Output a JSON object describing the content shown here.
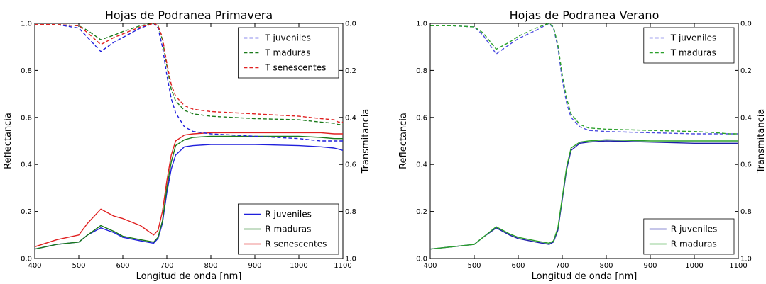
{
  "chart_data": [
    {
      "type": "line",
      "title": "Hojas de Podranea Primavera",
      "xlabel": "Longitud de onda [nm]",
      "ylabel": "Reflectancia",
      "y2label": "Transmitancia",
      "xlim": [
        400,
        1100
      ],
      "ylim": [
        0,
        1
      ],
      "y2lim": [
        1,
        0
      ],
      "y2_inverted": true,
      "grid": false,
      "xticks": [
        "400",
        "500",
        "600",
        "700",
        "800",
        "900",
        "1000",
        "1100"
      ],
      "yticks": [
        "0.0",
        "0.2",
        "0.4",
        "0.6",
        "0.8",
        "1.0"
      ],
      "y2ticks": [
        "0.0",
        "0.2",
        "0.4",
        "0.6",
        "0.8",
        "1.0"
      ],
      "legend_top": {
        "placement": "top-right",
        "entries": [
          "T juveniles",
          "T maduras",
          "T senescentes"
        ]
      },
      "legend_bottom": {
        "placement": "bottom-right",
        "entries": [
          "R juveniles",
          "R maduras",
          "R senescentes"
        ]
      },
      "x": [
        400,
        450,
        500,
        520,
        550,
        580,
        600,
        640,
        670,
        680,
        690,
        700,
        710,
        720,
        740,
        760,
        800,
        900,
        1000,
        1050,
        1080,
        1090,
        1100
      ],
      "series": [
        {
          "name": "R juveniles",
          "axis": "left",
          "style": "solid",
          "color": "#1f1fdc",
          "values": [
            0.04,
            0.06,
            0.07,
            0.1,
            0.13,
            0.11,
            0.09,
            0.075,
            0.065,
            0.085,
            0.15,
            0.28,
            0.38,
            0.44,
            0.475,
            0.48,
            0.485,
            0.485,
            0.48,
            0.475,
            0.47,
            0.465,
            0.46
          ]
        },
        {
          "name": "R maduras",
          "axis": "left",
          "style": "solid",
          "color": "#1a7a1a",
          "values": [
            0.04,
            0.06,
            0.07,
            0.1,
            0.14,
            0.115,
            0.095,
            0.08,
            0.07,
            0.09,
            0.16,
            0.3,
            0.41,
            0.48,
            0.505,
            0.515,
            0.52,
            0.52,
            0.52,
            0.515,
            0.51,
            0.51,
            0.51
          ]
        },
        {
          "name": "R senescentes",
          "axis": "left",
          "style": "solid",
          "color": "#e02020",
          "values": [
            0.05,
            0.08,
            0.1,
            0.15,
            0.21,
            0.18,
            0.17,
            0.14,
            0.1,
            0.12,
            0.2,
            0.33,
            0.44,
            0.5,
            0.525,
            0.53,
            0.535,
            0.535,
            0.535,
            0.535,
            0.53,
            0.53,
            0.53
          ]
        },
        {
          "name": "T juveniles",
          "axis": "right",
          "style": "dashed",
          "color": "#1f1fdc",
          "values": [
            0.005,
            0.005,
            0.02,
            0.06,
            0.12,
            0.08,
            0.06,
            0.02,
            0.0,
            0.02,
            0.1,
            0.22,
            0.32,
            0.38,
            0.44,
            0.46,
            0.47,
            0.48,
            0.49,
            0.5,
            0.5,
            0.5,
            0.5
          ]
        },
        {
          "name": "T maduras",
          "axis": "right",
          "style": "dashed",
          "color": "#1a7a1a",
          "values": [
            0.005,
            0.005,
            0.01,
            0.03,
            0.07,
            0.05,
            0.035,
            0.01,
            0.0,
            0.01,
            0.07,
            0.18,
            0.28,
            0.33,
            0.37,
            0.385,
            0.395,
            0.405,
            0.41,
            0.42,
            0.425,
            0.43,
            0.43
          ]
        },
        {
          "name": "T senescentes",
          "axis": "right",
          "style": "dashed",
          "color": "#e02020",
          "values": [
            0.005,
            0.005,
            0.01,
            0.04,
            0.09,
            0.06,
            0.045,
            0.015,
            0.0,
            0.01,
            0.06,
            0.17,
            0.26,
            0.31,
            0.35,
            0.365,
            0.375,
            0.385,
            0.395,
            0.405,
            0.41,
            0.42,
            0.42
          ]
        }
      ]
    },
    {
      "type": "line",
      "title": "Hojas de Podranea Verano",
      "xlabel": "Longitud de onda [nm]",
      "ylabel": "Reflectancia",
      "y2label": "Transmitancia",
      "xlim": [
        400,
        1100
      ],
      "ylim": [
        0,
        1
      ],
      "y2lim": [
        1,
        0
      ],
      "y2_inverted": true,
      "grid": false,
      "xticks": [
        "400",
        "500",
        "600",
        "700",
        "800",
        "900",
        "1000",
        "1100"
      ],
      "yticks": [
        "0.0",
        "0.2",
        "0.4",
        "0.6",
        "0.8",
        "1.0"
      ],
      "y2ticks": [
        "0.0",
        "0.2",
        "0.4",
        "0.6",
        "0.8",
        "1.0"
      ],
      "legend_top": {
        "placement": "top-right",
        "entries": [
          "T juveniles",
          "T maduras"
        ]
      },
      "legend_bottom": {
        "placement": "bottom-right",
        "entries": [
          "R juveniles",
          "R maduras"
        ]
      },
      "x": [
        400,
        450,
        500,
        520,
        550,
        580,
        600,
        640,
        670,
        680,
        690,
        700,
        710,
        720,
        740,
        760,
        800,
        900,
        1000,
        1050,
        1080,
        1090,
        1100
      ],
      "series": [
        {
          "name": "R juveniles",
          "axis": "left",
          "style": "solid",
          "color": "#1f1fa8",
          "values": [
            0.04,
            0.05,
            0.06,
            0.09,
            0.13,
            0.1,
            0.085,
            0.07,
            0.06,
            0.07,
            0.12,
            0.25,
            0.38,
            0.46,
            0.49,
            0.495,
            0.5,
            0.495,
            0.49,
            0.49,
            0.49,
            0.49,
            0.49
          ]
        },
        {
          "name": "R maduras",
          "axis": "left",
          "style": "solid",
          "color": "#2aa02a",
          "values": [
            0.04,
            0.05,
            0.06,
            0.09,
            0.135,
            0.105,
            0.09,
            0.075,
            0.065,
            0.075,
            0.13,
            0.26,
            0.39,
            0.47,
            0.495,
            0.5,
            0.505,
            0.5,
            0.5,
            0.5,
            0.5,
            0.5,
            0.5
          ]
        },
        {
          "name": "T juveniles",
          "axis": "right",
          "style": "dashed",
          "color": "#4a4ae0",
          "values": [
            0.01,
            0.01,
            0.015,
            0.05,
            0.13,
            0.09,
            0.065,
            0.03,
            0.0,
            0.02,
            0.1,
            0.24,
            0.34,
            0.4,
            0.44,
            0.455,
            0.46,
            0.465,
            0.47,
            0.47,
            0.47,
            0.47,
            0.47
          ]
        },
        {
          "name": "T maduras",
          "axis": "right",
          "style": "dashed",
          "color": "#2aa02a",
          "values": [
            0.01,
            0.01,
            0.015,
            0.04,
            0.11,
            0.08,
            0.055,
            0.02,
            0.0,
            0.015,
            0.09,
            0.22,
            0.32,
            0.385,
            0.43,
            0.445,
            0.45,
            0.455,
            0.46,
            0.465,
            0.47,
            0.47,
            0.47
          ]
        }
      ]
    }
  ]
}
